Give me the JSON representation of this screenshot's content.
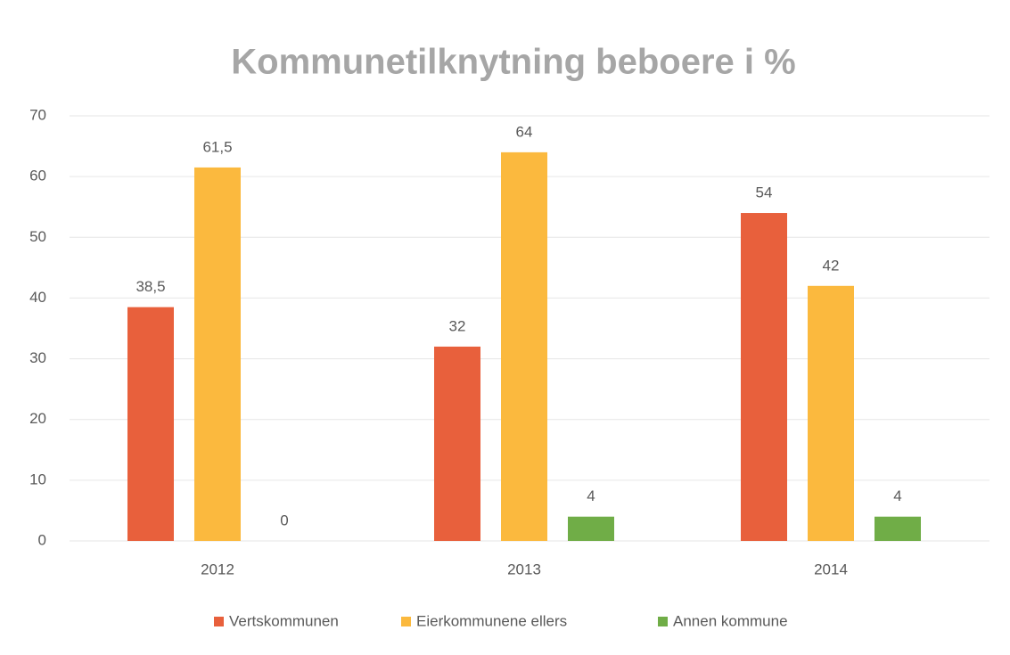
{
  "chart_data": {
    "type": "bar",
    "title": "Kommunetilknytning beboere i %",
    "categories": [
      "2012",
      "2013",
      "2014"
    ],
    "series": [
      {
        "name": "Vertskommunen",
        "color": "#e8603c",
        "values": [
          38.5,
          32,
          54
        ],
        "value_labels": [
          "38,5",
          "32",
          "54"
        ]
      },
      {
        "name": "Eierkommunene ellers",
        "color": "#fbb93e",
        "values": [
          61.5,
          64,
          42
        ],
        "value_labels": [
          "61,5",
          "64",
          "42"
        ]
      },
      {
        "name": "Annen kommune",
        "color": "#70ad47",
        "values": [
          0,
          4,
          4
        ],
        "value_labels": [
          "0",
          "4",
          "4"
        ]
      }
    ],
    "ylim": [
      0,
      70
    ],
    "yticks": [
      0,
      10,
      20,
      30,
      40,
      50,
      60,
      70
    ],
    "grid": true,
    "legend": "bottom"
  }
}
